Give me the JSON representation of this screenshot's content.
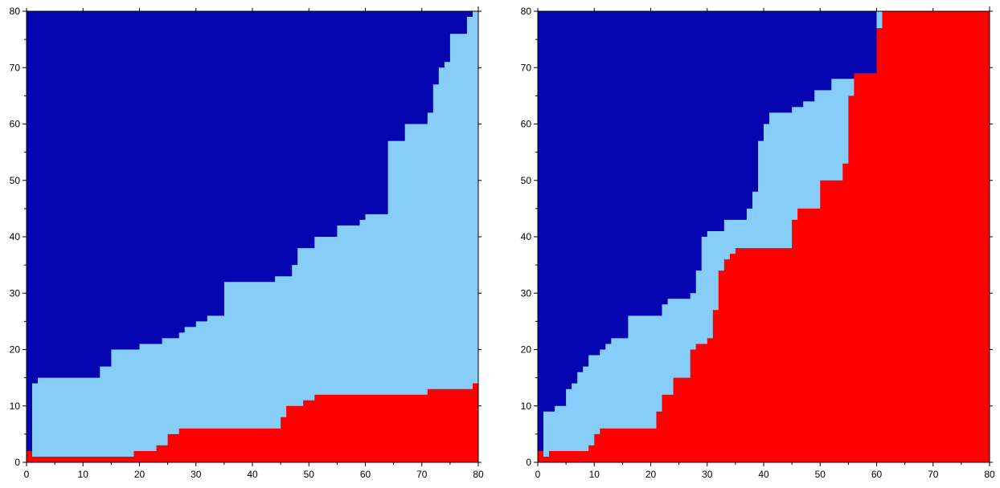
{
  "chart_data": [
    {
      "type": "heatmap",
      "xlim": [
        0,
        80
      ],
      "ylim": [
        0,
        80
      ],
      "x_ticks": [
        "0",
        "10",
        "20",
        "30",
        "40",
        "50",
        "60",
        "70",
        "80"
      ],
      "y_ticks": [
        "0",
        "10",
        "20",
        "30",
        "40",
        "50",
        "60",
        "70",
        "80"
      ],
      "grid": false,
      "colors": {
        "top": "#0404b0",
        "middle": "#87cdfa",
        "bottom": "#fe0000"
      },
      "upper_boundary": [
        [
          0,
          0
        ],
        [
          0,
          2
        ],
        [
          1,
          2
        ],
        [
          1,
          14
        ],
        [
          2,
          14
        ],
        [
          2,
          15
        ],
        [
          13,
          15
        ],
        [
          13,
          17
        ],
        [
          15,
          17
        ],
        [
          15,
          20
        ],
        [
          20,
          20
        ],
        [
          20,
          21
        ],
        [
          24,
          21
        ],
        [
          24,
          22
        ],
        [
          27,
          22
        ],
        [
          27,
          23
        ],
        [
          28,
          23
        ],
        [
          28,
          24
        ],
        [
          30,
          24
        ],
        [
          30,
          25
        ],
        [
          32,
          25
        ],
        [
          32,
          26
        ],
        [
          35,
          26
        ],
        [
          35,
          32
        ],
        [
          44,
          32
        ],
        [
          44,
          33
        ],
        [
          47,
          33
        ],
        [
          47,
          35
        ],
        [
          48,
          35
        ],
        [
          48,
          38
        ],
        [
          51,
          38
        ],
        [
          51,
          40
        ],
        [
          55,
          40
        ],
        [
          55,
          42
        ],
        [
          59,
          42
        ],
        [
          59,
          43
        ],
        [
          60,
          43
        ],
        [
          60,
          44
        ],
        [
          64,
          44
        ],
        [
          64,
          57
        ],
        [
          67,
          57
        ],
        [
          67,
          60
        ],
        [
          71,
          60
        ],
        [
          71,
          62
        ],
        [
          72,
          62
        ],
        [
          72,
          67
        ],
        [
          73,
          67
        ],
        [
          73,
          70
        ],
        [
          74,
          70
        ],
        [
          74,
          71
        ],
        [
          75,
          71
        ],
        [
          75,
          76
        ],
        [
          78,
          76
        ],
        [
          78,
          79
        ],
        [
          79,
          79
        ],
        [
          79,
          80
        ]
      ],
      "lower_boundary": [
        [
          0,
          0
        ],
        [
          0,
          2
        ],
        [
          1,
          2
        ],
        [
          1,
          1
        ],
        [
          19,
          1
        ],
        [
          19,
          2
        ],
        [
          23,
          2
        ],
        [
          23,
          3
        ],
        [
          25,
          3
        ],
        [
          25,
          5
        ],
        [
          27,
          5
        ],
        [
          27,
          6
        ],
        [
          45,
          6
        ],
        [
          45,
          8
        ],
        [
          46,
          8
        ],
        [
          46,
          10
        ],
        [
          49,
          10
        ],
        [
          49,
          11
        ],
        [
          51,
          11
        ],
        [
          51,
          12
        ],
        [
          71,
          12
        ],
        [
          71,
          13
        ],
        [
          79,
          13
        ],
        [
          79,
          14
        ],
        [
          80,
          14
        ]
      ]
    },
    {
      "type": "heatmap",
      "xlim": [
        0,
        80
      ],
      "ylim": [
        0,
        80
      ],
      "x_ticks": [
        "0",
        "10",
        "20",
        "30",
        "40",
        "50",
        "60",
        "70",
        "80"
      ],
      "y_ticks": [
        "0",
        "10",
        "20",
        "30",
        "40",
        "50",
        "60",
        "70",
        "80"
      ],
      "grid": false,
      "colors": {
        "top": "#0404b0",
        "middle": "#87cdfa",
        "bottom": "#fe0000"
      },
      "upper_boundary": [
        [
          0,
          0
        ],
        [
          0,
          2
        ],
        [
          1,
          2
        ],
        [
          1,
          9
        ],
        [
          3,
          9
        ],
        [
          3,
          10
        ],
        [
          5,
          10
        ],
        [
          5,
          13
        ],
        [
          6,
          13
        ],
        [
          6,
          14
        ],
        [
          7,
          14
        ],
        [
          7,
          16
        ],
        [
          8,
          16
        ],
        [
          8,
          17
        ],
        [
          9,
          17
        ],
        [
          9,
          19
        ],
        [
          11,
          19
        ],
        [
          11,
          20
        ],
        [
          12,
          20
        ],
        [
          12,
          21
        ],
        [
          13,
          21
        ],
        [
          13,
          22
        ],
        [
          16,
          22
        ],
        [
          16,
          26
        ],
        [
          22,
          26
        ],
        [
          22,
          28
        ],
        [
          23,
          28
        ],
        [
          23,
          29
        ],
        [
          27,
          29
        ],
        [
          27,
          30
        ],
        [
          28,
          30
        ],
        [
          28,
          34
        ],
        [
          29,
          34
        ],
        [
          29,
          40
        ],
        [
          30,
          40
        ],
        [
          30,
          41
        ],
        [
          33,
          41
        ],
        [
          33,
          43
        ],
        [
          37,
          43
        ],
        [
          37,
          45
        ],
        [
          38,
          45
        ],
        [
          38,
          48
        ],
        [
          39,
          48
        ],
        [
          39,
          57
        ],
        [
          40,
          57
        ],
        [
          40,
          60
        ],
        [
          41,
          60
        ],
        [
          41,
          62
        ],
        [
          45,
          62
        ],
        [
          45,
          63
        ],
        [
          47,
          63
        ],
        [
          47,
          64
        ],
        [
          49,
          64
        ],
        [
          49,
          66
        ],
        [
          52,
          66
        ],
        [
          52,
          68
        ],
        [
          61,
          68
        ],
        [
          61,
          75
        ],
        [
          61,
          77
        ],
        [
          60,
          77
        ],
        [
          60,
          80
        ]
      ],
      "lower_boundary": [
        [
          0,
          0
        ],
        [
          0,
          2
        ],
        [
          1,
          2
        ],
        [
          1,
          1
        ],
        [
          2,
          1
        ],
        [
          2,
          2
        ],
        [
          9,
          2
        ],
        [
          9,
          3
        ],
        [
          10,
          3
        ],
        [
          10,
          5
        ],
        [
          11,
          5
        ],
        [
          11,
          6
        ],
        [
          21,
          6
        ],
        [
          21,
          9
        ],
        [
          22,
          9
        ],
        [
          22,
          12
        ],
        [
          24,
          12
        ],
        [
          24,
          15
        ],
        [
          27,
          15
        ],
        [
          27,
          20
        ],
        [
          28,
          20
        ],
        [
          28,
          21
        ],
        [
          30,
          21
        ],
        [
          30,
          22
        ],
        [
          31,
          22
        ],
        [
          31,
          27
        ],
        [
          32,
          27
        ],
        [
          32,
          34
        ],
        [
          33,
          34
        ],
        [
          33,
          36
        ],
        [
          34,
          36
        ],
        [
          34,
          37
        ],
        [
          35,
          37
        ],
        [
          35,
          38
        ],
        [
          45,
          38
        ],
        [
          45,
          43
        ],
        [
          46,
          43
        ],
        [
          46,
          45
        ],
        [
          50,
          45
        ],
        [
          50,
          50
        ],
        [
          54,
          50
        ],
        [
          54,
          53
        ],
        [
          55,
          53
        ],
        [
          55,
          65
        ],
        [
          56,
          65
        ],
        [
          56,
          69
        ],
        [
          60,
          69
        ],
        [
          60,
          77
        ],
        [
          61,
          77
        ],
        [
          61,
          80
        ],
        [
          80,
          80
        ]
      ]
    }
  ]
}
